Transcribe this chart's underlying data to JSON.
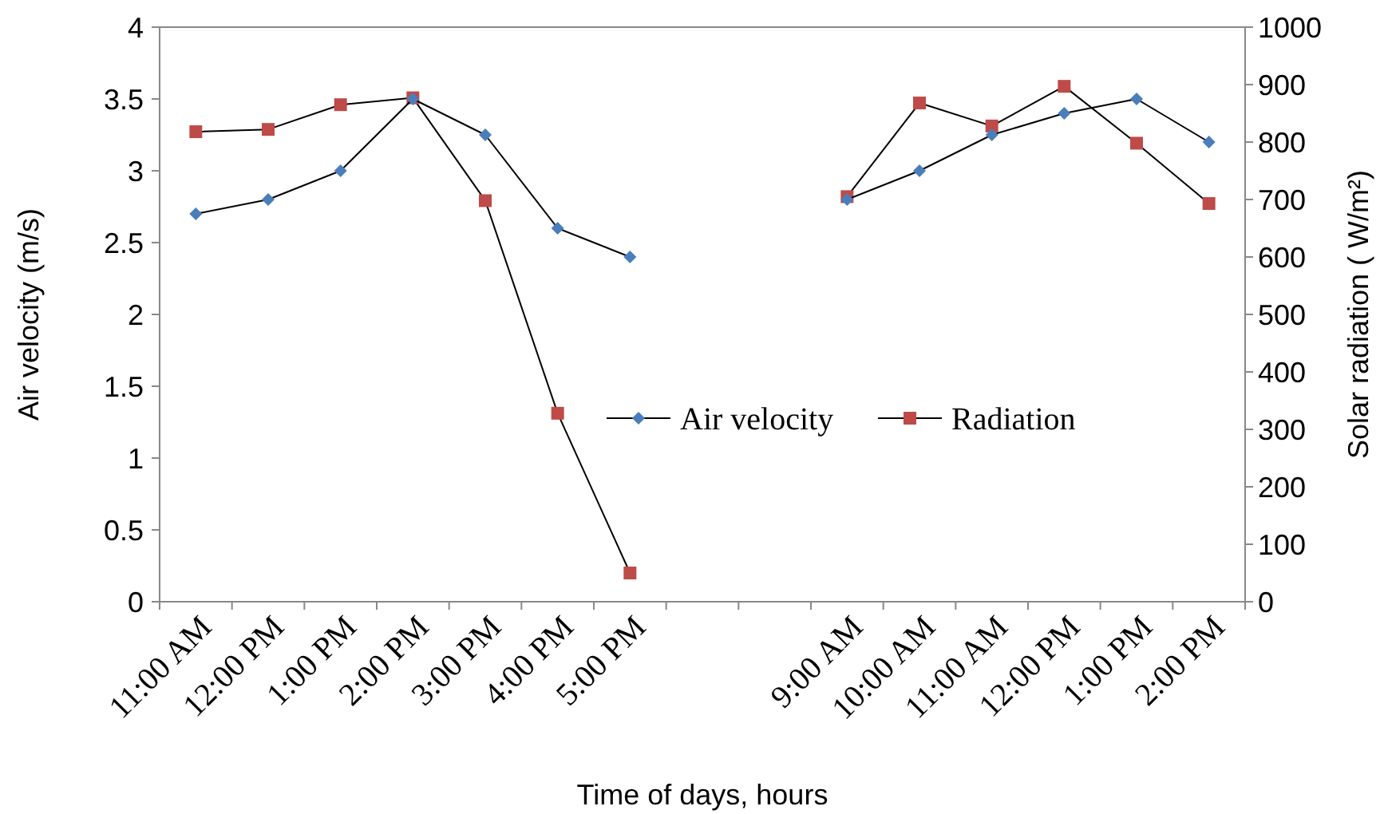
{
  "chart_data": {
    "type": "line",
    "xlabel": "Time of days, hours",
    "ylabel": "Air velocity (m/s)",
    "y2label": "Solar radiation ( W/m²)",
    "categories": [
      "11:00 AM",
      "12:00 PM",
      "1:00 PM",
      "2:00 PM",
      "3:00 PM",
      "4:00 PM",
      "5:00 PM",
      null,
      null,
      "9:00 AM",
      "10:00 AM",
      "11:00 AM",
      "12:00 PM",
      "1:00 PM",
      "2:00 PM"
    ],
    "series": [
      {
        "name": "Air velocity",
        "color": "#4a7ebb",
        "marker": "diamond",
        "values": [
          2.7,
          2.8,
          3.0,
          3.5,
          3.25,
          2.6,
          2.4,
          null,
          null,
          2.8,
          3.0,
          3.25,
          3.4,
          3.5,
          3.2
        ]
      },
      {
        "name": "Radiation",
        "color": "#be4b48",
        "marker": "square",
        "axis": "y2",
        "values": [
          818,
          822,
          865,
          877,
          698,
          328,
          50,
          null,
          null,
          705,
          868,
          828,
          897,
          798,
          693
        ]
      }
    ],
    "ylim": [
      0,
      4
    ],
    "yticks": [
      0,
      0.5,
      1,
      1.5,
      2,
      2.5,
      3,
      3.5,
      4
    ],
    "y2lim": [
      0,
      1000
    ],
    "y2ticks": [
      0,
      100,
      200,
      300,
      400,
      500,
      600,
      700,
      800,
      900,
      1000
    ],
    "legend": "center",
    "grid": false
  }
}
